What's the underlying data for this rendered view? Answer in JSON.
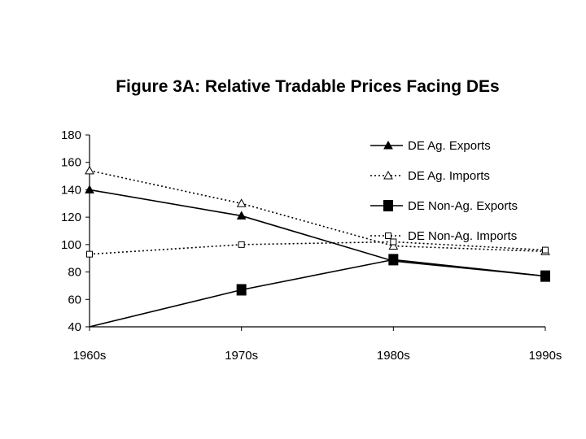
{
  "chart_data": {
    "type": "line",
    "title": "Figure 3A: Relative Tradable Prices Facing DEs",
    "xlabel": "",
    "ylabel": "",
    "categories": [
      "1960s",
      "1970s",
      "1980s",
      "1990s"
    ],
    "ylim": [
      40,
      180
    ],
    "yticks": [
      40,
      60,
      80,
      100,
      120,
      140,
      160,
      180
    ],
    "grid": false,
    "legend_position": "top-right",
    "series": [
      {
        "name": "DE Ag. Exports",
        "values": [
          140,
          121,
          88,
          77
        ],
        "line": "solid",
        "marker": "filled-triangle"
      },
      {
        "name": "DE Ag. Imports",
        "values": [
          154,
          130,
          99,
          95
        ],
        "line": "dotted",
        "marker": "open-triangle"
      },
      {
        "name": "DE Non-Ag. Exports",
        "values": [
          39,
          67,
          89,
          77
        ],
        "line": "solid",
        "marker": "filled-square"
      },
      {
        "name": "DE Non-Ag. Imports",
        "values": [
          93,
          100,
          102,
          96
        ],
        "line": "dotted",
        "marker": "open-square"
      }
    ]
  }
}
